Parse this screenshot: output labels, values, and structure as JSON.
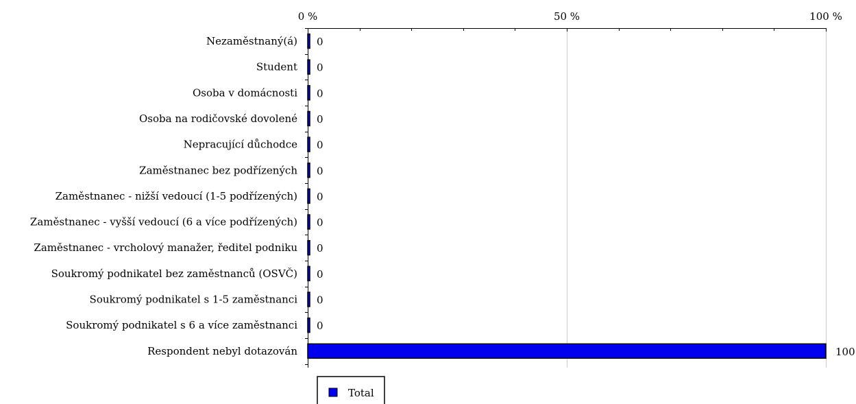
{
  "chart_data": {
    "type": "bar",
    "orientation": "horizontal",
    "categories": [
      "Nezaměstnaný(á)",
      "Student",
      "Osoba v domácnosti",
      "Osoba na rodičovské dovolené",
      "Nepracující důchodce",
      "Zaměstnanec bez podřízených",
      "Zaměstnanec - nižší vedoucí (1-5 podřízených)",
      "Zaměstnanec - vyšší vedoucí (6 a více podřízených)",
      "Zaměstnanec - vrcholový manažer, ředitel podniku",
      "Soukromý podnikatel bez zaměstnanců (OSVČ)",
      "Soukromý podnikatel s 1-5 zaměstnanci",
      "Soukromý podnikatel s 6 a více zaměstnanci",
      "Respondent nebyl dotazován"
    ],
    "series": [
      {
        "name": "Total",
        "color": "#0000ee",
        "values": [
          0,
          0,
          0,
          0,
          0,
          0,
          0,
          0,
          0,
          0,
          0,
          0,
          100
        ],
        "labels": [
          "0",
          "0",
          "0",
          "0",
          "0",
          "0",
          "0",
          "0",
          "0",
          "0",
          "0",
          "0",
          "100"
        ]
      }
    ],
    "xlim": [
      0,
      100
    ],
    "x_ticks": [
      0,
      50,
      100
    ],
    "x_tick_labels": [
      "0 %",
      "50 %",
      "100 %"
    ],
    "x_axis_position": "top",
    "grid": true,
    "legend": {
      "position": "bottom-left",
      "entries": [
        "Total"
      ]
    }
  }
}
